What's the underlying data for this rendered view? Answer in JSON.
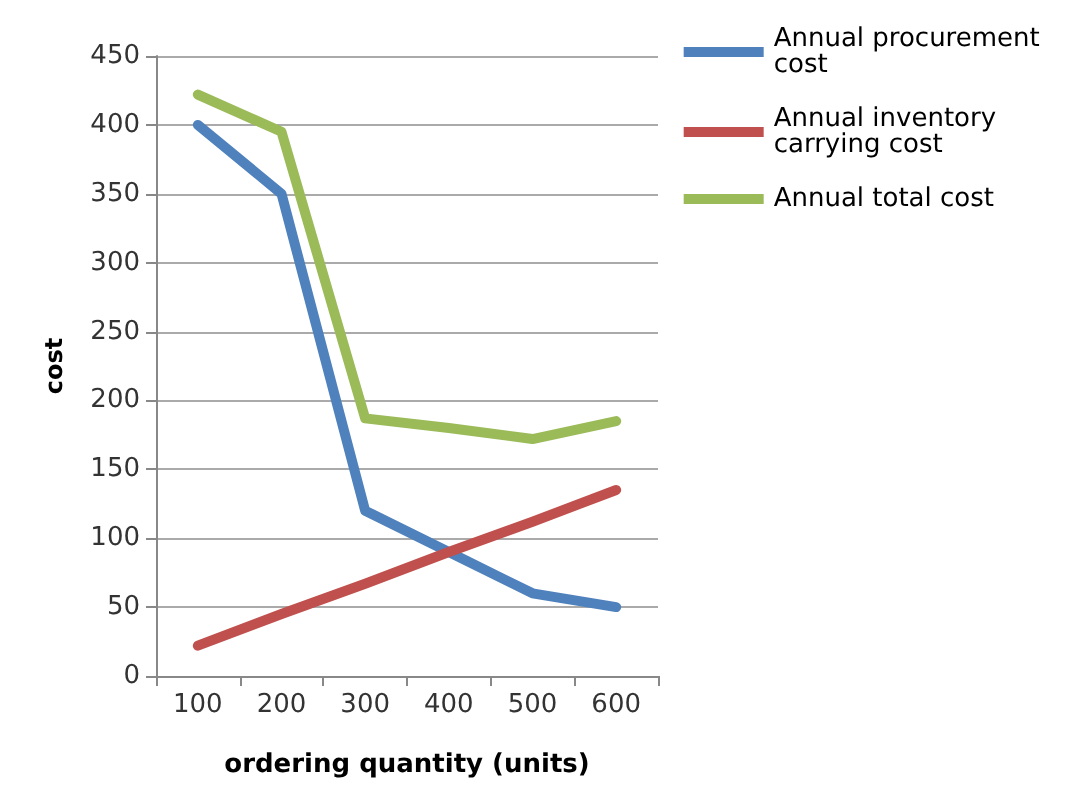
{
  "chart_data": {
    "type": "line",
    "xlabel": "ordering quantity (units)",
    "ylabel": "cost",
    "categories": [
      "100",
      "200",
      "300",
      "400",
      "500",
      "600"
    ],
    "series": [
      {
        "name": "Annual procurement cost",
        "color": "#4f81bd",
        "values": [
          400,
          350,
          120,
          90,
          60,
          50
        ]
      },
      {
        "name": "Annual inventory carrying cost",
        "color": "#c0504d",
        "values": [
          22,
          45,
          67,
          90,
          112,
          135
        ]
      },
      {
        "name": "Annual total cost",
        "color": "#9bbb59",
        "values": [
          422,
          395,
          187,
          180,
          172,
          185
        ]
      }
    ],
    "ylim": [
      0,
      450
    ],
    "yticks": [
      0,
      50,
      100,
      150,
      200,
      250,
      300,
      350,
      400,
      450
    ],
    "grid": "y",
    "legend": "top right",
    "marker": "none",
    "line_style": "solid"
  }
}
